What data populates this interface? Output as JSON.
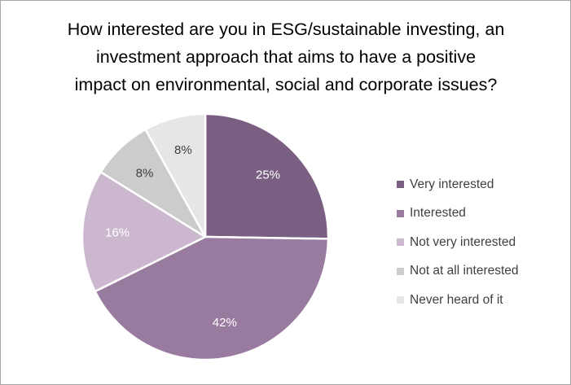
{
  "chart_data": {
    "type": "pie",
    "title_lines": [
      "How interested are you in ESG/sustainable investing, an",
      "investment approach that aims to have a positive",
      "impact on environmental, social and corporate issues?"
    ],
    "categories": [
      "Very interested",
      "Interested",
      "Not very interested",
      "Not at all interested",
      "Never heard of it"
    ],
    "values": [
      25,
      42,
      16,
      8,
      8
    ],
    "value_labels": [
      "25%",
      "42%",
      "16%",
      "8%",
      "8%"
    ],
    "colors": [
      "#7b5f83",
      "#9a7ba0",
      "#cbb8cf",
      "#cccccc",
      "#e6e6e6"
    ],
    "label_colors": [
      "#ffffff",
      "#ffffff",
      "#ffffff",
      "#404040",
      "#404040"
    ],
    "start_angle_deg": 0,
    "direction": "clockwise",
    "legend_position": "right"
  }
}
